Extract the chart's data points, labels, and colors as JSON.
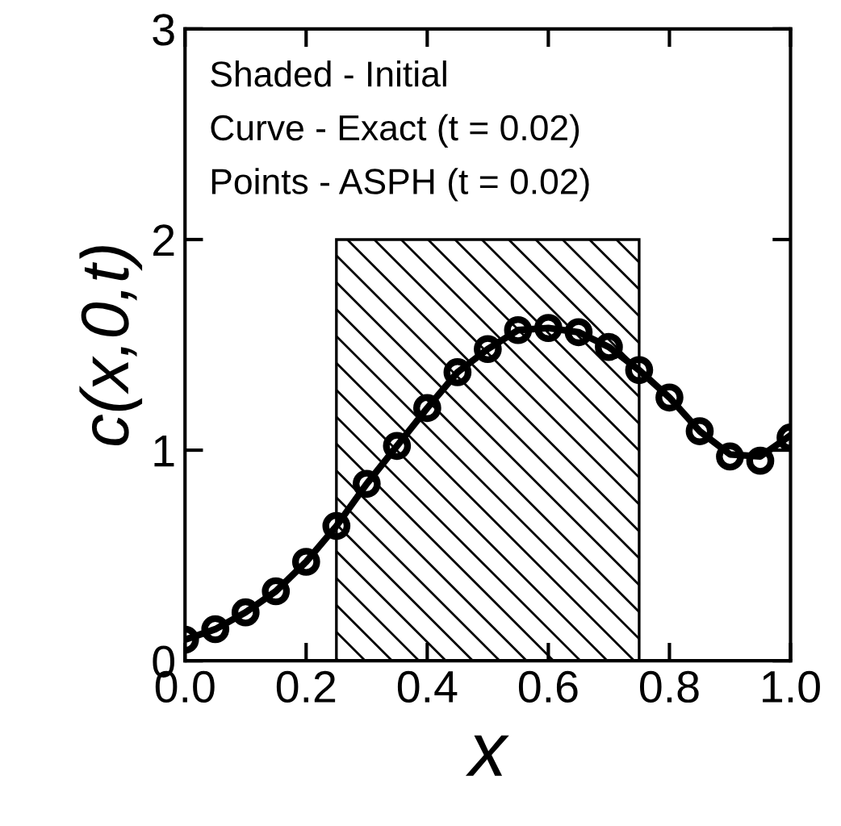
{
  "chart_data": {
    "type": "line",
    "xlabel": "x",
    "ylabel": "c(x,0,t)",
    "xlim": [
      0,
      1
    ],
    "ylim": [
      0,
      3
    ],
    "xticks": [
      {
        "value": 0,
        "label": "0.0"
      },
      0.2,
      0.4,
      0.6,
      0.8,
      {
        "value": 1,
        "label": "1.0"
      }
    ],
    "yticks": [
      0,
      1,
      2,
      3
    ],
    "grid": false,
    "legend": false,
    "annotations": [
      "Shaded - Initial",
      "Curve - Exact (t = 0.02)",
      "Points - ASPH (t = 0.02)"
    ],
    "series": [
      {
        "type": "area",
        "color": "#000000",
        "x": [
          0.25,
          0.25,
          0.75,
          0.75
        ],
        "values": [
          0,
          2,
          2,
          0
        ]
      },
      {
        "color": "#000000",
        "line_style": "solid",
        "marker": "none",
        "x": [
          0,
          0.05,
          0.1,
          0.15,
          0.2,
          0.25,
          0.3,
          0.35,
          0.4,
          0.45,
          0.5,
          0.55,
          0.6,
          0.65,
          0.7,
          0.75,
          0.8,
          0.85,
          0.9,
          0.95,
          1.0
        ],
        "values": [
          0.1,
          0.15,
          0.23,
          0.33,
          0.47,
          0.64,
          0.84,
          1.02,
          1.2,
          1.37,
          1.48,
          1.57,
          1.58,
          1.56,
          1.49,
          1.38,
          1.25,
          1.09,
          0.98,
          0.97,
          1.07
        ]
      },
      {
        "type": "scatter",
        "color": "#000000",
        "marker": "circle",
        "x": [
          0,
          0.05,
          0.1,
          0.15,
          0.2,
          0.25,
          0.3,
          0.35,
          0.4,
          0.45,
          0.5,
          0.55,
          0.6,
          0.65,
          0.7,
          0.75,
          0.8,
          0.85,
          0.9,
          0.95,
          1.0
        ],
        "values": [
          0.1,
          0.15,
          0.23,
          0.33,
          0.47,
          0.64,
          0.84,
          1.02,
          1.2,
          1.37,
          1.48,
          1.57,
          1.58,
          1.56,
          1.49,
          1.38,
          1.25,
          1.09,
          0.97,
          0.95,
          1.06
        ]
      }
    ]
  }
}
